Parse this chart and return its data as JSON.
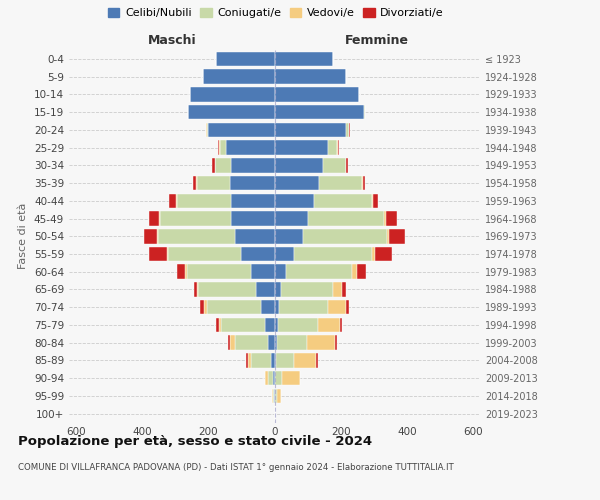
{
  "age_groups": [
    "0-4",
    "5-9",
    "10-14",
    "15-19",
    "20-24",
    "25-29",
    "30-34",
    "35-39",
    "40-44",
    "45-49",
    "50-54",
    "55-59",
    "60-64",
    "65-69",
    "70-74",
    "75-79",
    "80-84",
    "85-89",
    "90-94",
    "95-99",
    "100+"
  ],
  "birth_years": [
    "2019-2023",
    "2014-2018",
    "2009-2013",
    "2004-2008",
    "1999-2003",
    "1994-1998",
    "1989-1993",
    "1984-1988",
    "1979-1983",
    "1974-1978",
    "1969-1973",
    "1964-1968",
    "1959-1963",
    "1954-1958",
    "1949-1953",
    "1944-1948",
    "1939-1943",
    "1934-1938",
    "1929-1933",
    "1924-1928",
    "≤ 1923"
  ],
  "males": {
    "celibi": [
      175,
      215,
      255,
      260,
      200,
      145,
      130,
      135,
      130,
      130,
      120,
      100,
      70,
      55,
      40,
      30,
      20,
      10,
      5,
      2,
      0
    ],
    "coniugati": [
      0,
      0,
      1,
      2,
      5,
      20,
      50,
      100,
      165,
      215,
      230,
      220,
      195,
      175,
      165,
      130,
      100,
      60,
      15,
      3,
      0
    ],
    "vedovi": [
      0,
      0,
      0,
      0,
      1,
      1,
      1,
      1,
      2,
      3,
      3,
      3,
      5,
      5,
      8,
      8,
      15,
      10,
      8,
      2,
      0
    ],
    "divorziati": [
      0,
      0,
      0,
      0,
      2,
      5,
      8,
      10,
      20,
      30,
      40,
      55,
      25,
      8,
      12,
      10,
      5,
      5,
      0,
      0,
      0
    ]
  },
  "females": {
    "nubili": [
      175,
      215,
      255,
      270,
      215,
      160,
      145,
      135,
      120,
      100,
      85,
      60,
      35,
      20,
      15,
      12,
      8,
      5,
      3,
      2,
      0
    ],
    "coniugate": [
      0,
      0,
      1,
      3,
      10,
      30,
      70,
      130,
      175,
      230,
      255,
      235,
      200,
      155,
      145,
      120,
      90,
      55,
      20,
      5,
      0
    ],
    "vedove": [
      0,
      0,
      0,
      0,
      0,
      1,
      1,
      1,
      2,
      5,
      5,
      8,
      15,
      30,
      55,
      65,
      85,
      65,
      55,
      12,
      0
    ],
    "divorziate": [
      0,
      0,
      0,
      0,
      2,
      3,
      5,
      8,
      15,
      35,
      50,
      50,
      25,
      10,
      10,
      8,
      5,
      5,
      0,
      0,
      0
    ]
  },
  "colors": {
    "celibi": "#4d7ab5",
    "coniugati": "#c8d9a8",
    "vedovi": "#f5cc80",
    "divorziati": "#cc2222"
  },
  "xlim": 620,
  "title": "Popolazione per età, sesso e stato civile - 2024",
  "subtitle": "COMUNE DI VILLAFRANCA PADOVANA (PD) - Dati ISTAT 1° gennaio 2024 - Elaborazione TUTTITALIA.IT",
  "legend_labels": [
    "Celibi/Nubili",
    "Coniugati/e",
    "Vedovi/e",
    "Divorziati/e"
  ],
  "xlabel_left": "Maschi",
  "xlabel_right": "Femmine",
  "ylabel_left": "Fasce di età",
  "bg_color": "#f7f7f7",
  "grid_color": "#cccccc"
}
